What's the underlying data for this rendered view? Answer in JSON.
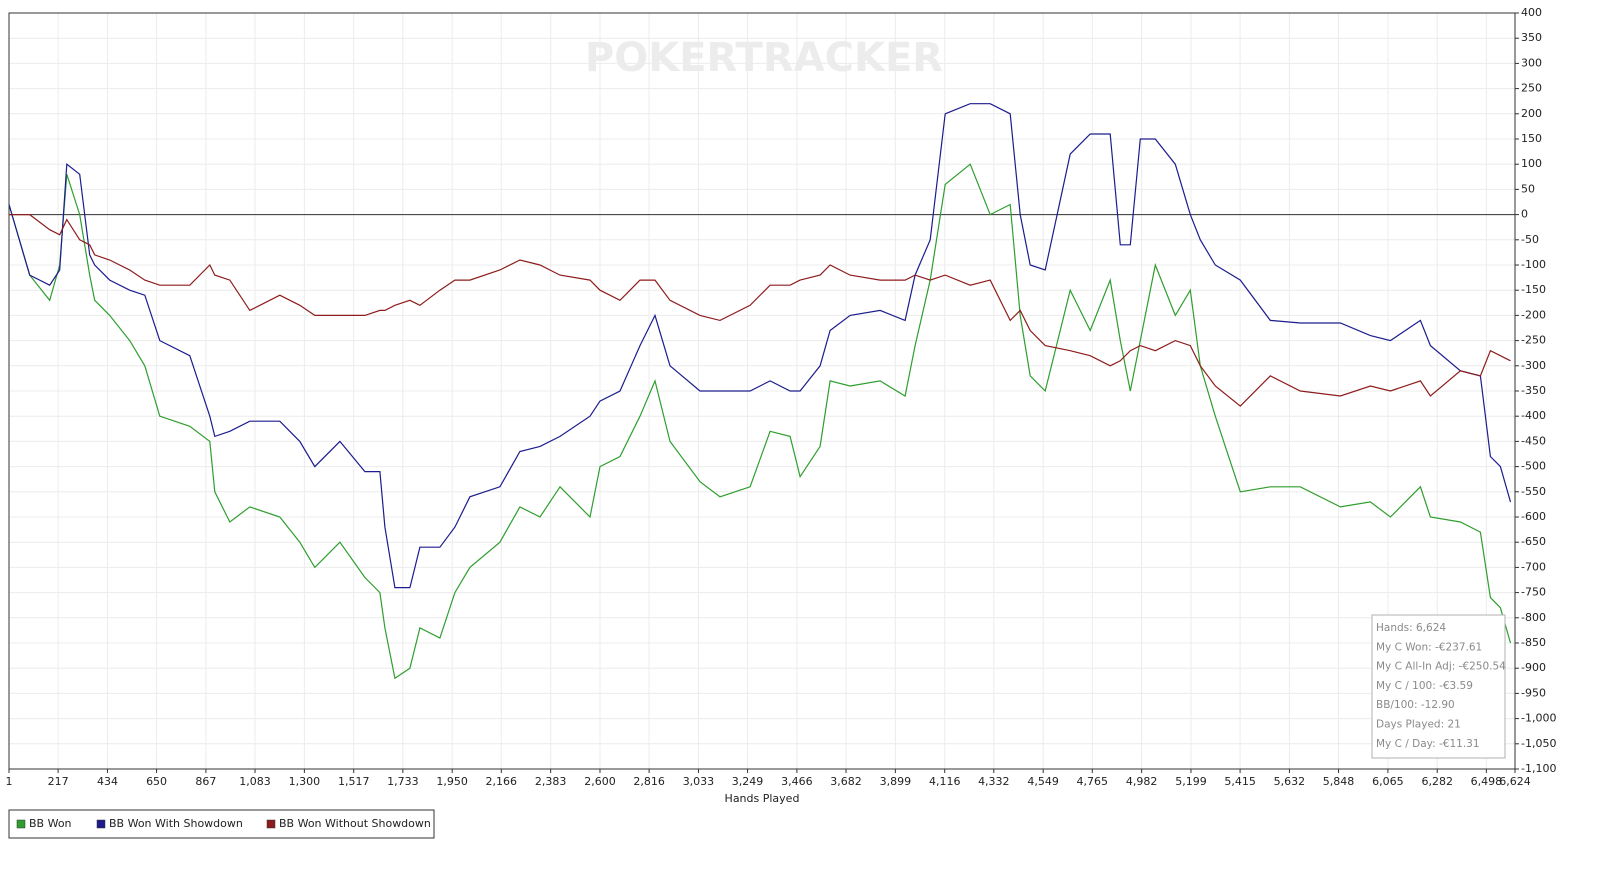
{
  "chart_data": {
    "type": "line",
    "watermark": "POKERTRACKER",
    "x_label": "Hands Played",
    "x": [
      1,
      92,
      180,
      224,
      255,
      312,
      356,
      378,
      444,
      532,
      598,
      664,
      796,
      884,
      906,
      972,
      1060,
      1192,
      1280,
      1346,
      1456,
      1566,
      1632,
      1654,
      1698,
      1764,
      1808,
      1896,
      1962,
      2028,
      2160,
      2248,
      2336,
      2424,
      2556,
      2600,
      2688,
      2776,
      2842,
      2908,
      3040,
      3128,
      3260,
      3348,
      3436,
      3480,
      3568,
      3612,
      3700,
      3832,
      3942,
      3986,
      4052,
      4118,
      4228,
      4316,
      4404,
      4448,
      4492,
      4558,
      4668,
      4756,
      4844,
      4888,
      4932,
      4976,
      5042,
      5130,
      5196,
      5240,
      5306,
      5416,
      5548,
      5680,
      5856,
      5988,
      6076,
      6208,
      6252,
      6384,
      6472,
      6516,
      6560,
      6604
    ],
    "series": [
      {
        "name": "BB Won",
        "color": "#2e9e2e",
        "values": [
          20,
          -120,
          -170,
          -100,
          80,
          0,
          -120,
          -170,
          -200,
          -250,
          -300,
          -400,
          -420,
          -450,
          -550,
          -610,
          -580,
          -600,
          -650,
          -700,
          -650,
          -720,
          -750,
          -820,
          -920,
          -900,
          -820,
          -840,
          -750,
          -700,
          -650,
          -580,
          -600,
          -540,
          -600,
          -500,
          -480,
          -400,
          -330,
          -450,
          -530,
          -560,
          -540,
          -430,
          -440,
          -520,
          -460,
          -330,
          -340,
          -330,
          -360,
          -260,
          -130,
          60,
          100,
          0,
          20,
          -200,
          -320,
          -350,
          -150,
          -230,
          -130,
          -250,
          -350,
          -250,
          -100,
          -200,
          -150,
          -300,
          -400,
          -550,
          -540,
          -540,
          -580,
          -570,
          -600,
          -540,
          -600,
          -610,
          -630,
          -760,
          -780,
          -850
        ]
      },
      {
        "name": "BB Won With Showdown",
        "color": "#1c1c8e",
        "values": [
          20,
          -120,
          -140,
          -110,
          100,
          80,
          -80,
          -100,
          -130,
          -150,
          -160,
          -250,
          -280,
          -400,
          -440,
          -430,
          -410,
          -410,
          -450,
          -500,
          -450,
          -510,
          -510,
          -620,
          -740,
          -740,
          -660,
          -660,
          -620,
          -560,
          -540,
          -470,
          -460,
          -440,
          -400,
          -370,
          -350,
          -260,
          -200,
          -300,
          -350,
          -350,
          -350,
          -330,
          -350,
          -350,
          -300,
          -230,
          -200,
          -190,
          -210,
          -120,
          -50,
          200,
          220,
          220,
          200,
          0,
          -100,
          -110,
          120,
          160,
          160,
          -60,
          -60,
          150,
          150,
          100,
          0,
          -50,
          -100,
          -130,
          -210,
          -215,
          -215,
          -240,
          -250,
          -210,
          -260,
          -310,
          -320,
          -480,
          -500,
          -570
        ]
      },
      {
        "name": "BB Won Without Showdown",
        "color": "#8e1c1c",
        "values": [
          0,
          0,
          -30,
          -40,
          -10,
          -50,
          -60,
          -80,
          -90,
          -110,
          -130,
          -140,
          -140,
          -100,
          -120,
          -130,
          -190,
          -160,
          -180,
          -200,
          -200,
          -200,
          -190,
          -190,
          -180,
          -170,
          -180,
          -150,
          -130,
          -130,
          -110,
          -90,
          -100,
          -120,
          -130,
          -150,
          -170,
          -130,
          -130,
          -170,
          -200,
          -210,
          -180,
          -140,
          -140,
          -130,
          -120,
          -100,
          -120,
          -130,
          -130,
          -120,
          -130,
          -120,
          -140,
          -130,
          -210,
          -190,
          -230,
          -260,
          -270,
          -280,
          -300,
          -290,
          -270,
          -260,
          -270,
          -250,
          -260,
          -300,
          -340,
          -380,
          -320,
          -350,
          -360,
          -340,
          -350,
          -330,
          -360,
          -310,
          -320,
          -270,
          -280,
          -290
        ]
      }
    ],
    "xlim": [
      1,
      6624
    ],
    "xticks": [
      1,
      217,
      434,
      650,
      867,
      {
        "value": 1083,
        "label": "1,083"
      },
      {
        "value": 1300,
        "label": "1,300"
      },
      {
        "value": 1517,
        "label": "1,517"
      },
      {
        "value": 1733,
        "label": "1,733"
      },
      {
        "value": 1950,
        "label": "1,950"
      },
      {
        "value": 2166,
        "label": "2,166"
      },
      {
        "value": 2383,
        "label": "2,383"
      },
      {
        "value": 2600,
        "label": "2,600"
      },
      {
        "value": 2816,
        "label": "2,816"
      },
      {
        "value": 3033,
        "label": "3,033"
      },
      {
        "value": 3249,
        "label": "3,249"
      },
      {
        "value": 3466,
        "label": "3,466"
      },
      {
        "value": 3682,
        "label": "3,682"
      },
      {
        "value": 3899,
        "label": "3,899"
      },
      {
        "value": 4116,
        "label": "4,116"
      },
      {
        "value": 4332,
        "label": "4,332"
      },
      {
        "value": 4549,
        "label": "4,549"
      },
      {
        "value": 4765,
        "label": "4,765"
      },
      {
        "value": 4982,
        "label": "4,982"
      },
      {
        "value": 5199,
        "label": "5,199"
      },
      {
        "value": 5415,
        "label": "5,415"
      },
      {
        "value": 5632,
        "label": "5,632"
      },
      {
        "value": 5848,
        "label": "5,848"
      },
      {
        "value": 6065,
        "label": "6,065"
      },
      {
        "value": 6282,
        "label": "6,282"
      },
      {
        "value": 6498,
        "label": "6,498"
      },
      {
        "value": 6624,
        "label": "6,624"
      }
    ],
    "ylim": [
      -1100,
      400
    ],
    "yticks": [
      {
        "value": -1100,
        "label": "-1,100"
      },
      {
        "value": -1050,
        "label": "-1,050"
      },
      {
        "value": -1000,
        "label": "-1,000"
      },
      -950,
      -900,
      -850,
      -800,
      -750,
      -700,
      -650,
      -600,
      -550,
      -500,
      -450,
      -400,
      -350,
      -300,
      -250,
      -200,
      -150,
      -100,
      -50,
      0,
      50,
      100,
      150,
      200,
      250,
      300,
      350,
      400
    ],
    "grid": true,
    "tooltip": [
      "Hands: 6,624",
      "My C Won: -€237.61",
      "My C All-In Adj: -€250.54",
      "My C / 100: -€3.59",
      "BB/100: -12.90",
      "Days Played: 21",
      "My C / Day: -€11.31"
    ]
  }
}
